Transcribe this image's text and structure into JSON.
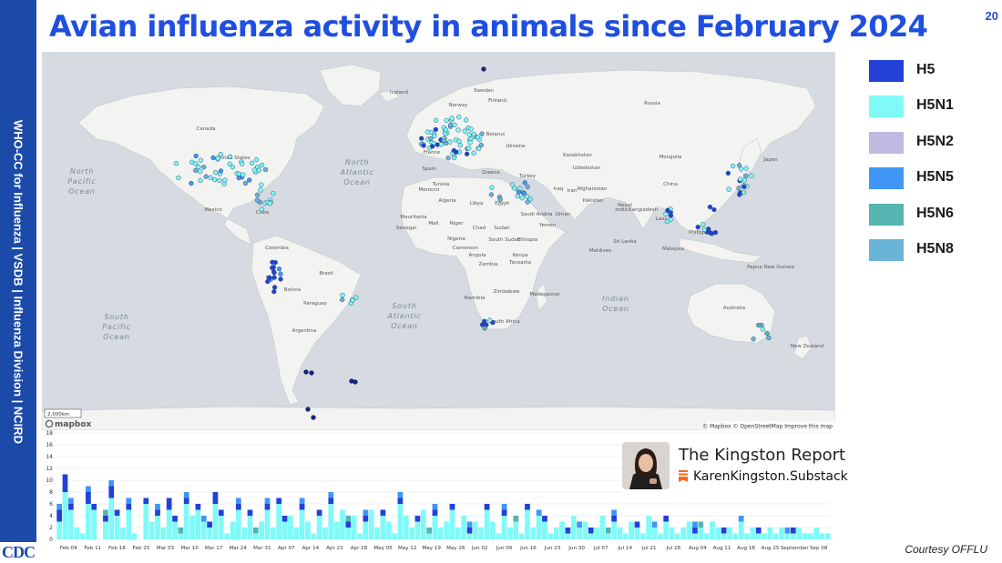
{
  "slide": {
    "title": "Avian influenza activity in animals since February 2024",
    "page_number": "20",
    "sidebar_text": "WHO-CC for Influenza  |  VSDB | Influenza Division  |  NCIRD",
    "logo_text": "CDC",
    "courtesy": "Courtesy OFFLU"
  },
  "legend": [
    {
      "label": "H5",
      "color": "#2340d8"
    },
    {
      "label": "H5N1",
      "color": "#7ffaf8"
    },
    {
      "label": "H5N2",
      "color": "#c0b8e0"
    },
    {
      "label": "H5N5",
      "color": "#3f96f5"
    },
    {
      "label": "H5N6",
      "color": "#55b5b0"
    },
    {
      "label": "H5N8",
      "color": "#6ab4d8"
    }
  ],
  "map": {
    "ocean_labels": [
      {
        "lines": [
          "North",
          "Pacific",
          "Ocean"
        ]
      },
      {
        "lines": [
          "North",
          "Atlantic",
          "Ocean"
        ]
      },
      {
        "lines": [
          "South",
          "Pacific",
          "Ocean"
        ]
      },
      {
        "lines": [
          "South",
          "Atlantic",
          "Ocean"
        ]
      },
      {
        "lines": [
          "Indian",
          "Ocean"
        ]
      }
    ],
    "country_labels": [
      "Iceland",
      "Sweden",
      "Finland",
      "Norway",
      "Russia",
      "Canada",
      "United States",
      "Mexico",
      "Cuba",
      "Colombia",
      "Brazil",
      "Peru",
      "Bolivia",
      "Paraguay",
      "Argentina",
      "Kazakhstan",
      "Mongolia",
      "China",
      "India",
      "Turkey",
      "Iran",
      "Afghanistan",
      "Pakistan",
      "Uzbekistan",
      "Spain",
      "France",
      "Belarus",
      "Ukraine",
      "Greece",
      "Morocco",
      "Tunisia",
      "Algeria",
      "Libya",
      "Egypt",
      "Mauritania",
      "Mali",
      "Niger",
      "Chad",
      "Sudan",
      "Senegal",
      "Nigeria",
      "Cameroon",
      "South Sudan",
      "Ethiopia",
      "Kenya",
      "Tanzania",
      "Angola",
      "Zambia",
      "Zimbabwe",
      "Namibia",
      "Madagascar",
      "South Africa",
      "Saudi Arabia",
      "Iraq",
      "Oman",
      "Yemen",
      "Nepal",
      "Bangladesh",
      "Laos",
      "Philippines",
      "Malaysia",
      "Sri Lanka",
      "Maldives",
      "Papua New Guinea",
      "Australia",
      "New Zealand",
      "Japan"
    ],
    "scale_label": "2,000km",
    "mapbox_logo": "mapbox",
    "attribution": "© Mapbox © OpenStreetMap Improve this map"
  },
  "chart_data": {
    "type": "bar",
    "ylim": [
      0,
      18
    ],
    "y_ticks": [
      0,
      2,
      4,
      6,
      8,
      10,
      12,
      14,
      16,
      18
    ],
    "x_tick_labels": [
      "Feb 04",
      "Feb 11",
      "Feb 18",
      "Feb 25",
      "Mar 03",
      "Mar 10",
      "Mar 17",
      "Mar 24",
      "Mar 31",
      "Apr 07",
      "Apr 14",
      "Apr 21",
      "Apr 28",
      "May 05",
      "May 12",
      "May 19",
      "May 26",
      "Jun 02",
      "Jun 09",
      "Jun 16",
      "Jun 23",
      "Jun 30",
      "Jul 07",
      "Jul 14",
      "Jul 21",
      "Jul 28",
      "Aug 04",
      "Aug 11",
      "Aug 18",
      "Aug 25",
      "September",
      "Sep 08"
    ],
    "series": [
      {
        "name": "H5N1",
        "color": "#7ffaf8",
        "values": [
          3,
          8,
          5,
          2,
          1,
          6,
          5,
          0,
          3,
          7,
          4,
          2,
          5,
          1,
          0,
          6,
          3,
          4,
          2,
          5,
          3,
          1,
          6,
          4,
          5,
          3,
          2,
          6,
          4,
          1,
          3,
          5,
          2,
          4,
          1,
          3,
          5,
          2,
          6,
          3,
          4,
          2,
          5,
          3,
          1,
          4,
          2,
          6,
          3,
          5,
          2,
          4,
          1,
          3,
          5,
          2,
          4,
          3,
          1,
          6,
          4,
          2,
          3,
          5,
          1,
          4,
          2,
          3,
          5,
          2,
          4,
          1,
          3,
          2,
          5,
          3,
          1,
          4,
          2,
          3,
          1,
          5,
          2,
          4,
          3,
          1,
          2,
          3,
          1,
          4,
          2,
          3,
          1,
          2,
          4,
          1,
          3,
          2,
          1,
          3,
          2,
          1,
          4,
          2,
          1,
          3,
          2,
          1,
          2,
          3,
          1,
          2,
          1,
          3,
          2,
          1,
          2,
          1,
          3,
          1,
          2,
          1,
          1,
          2,
          1,
          2,
          1,
          1,
          2,
          1,
          1,
          2,
          1,
          1
        ]
      },
      {
        "name": "H5",
        "color": "#2340d8",
        "values": [
          2,
          3,
          1,
          0,
          0,
          2,
          1,
          0,
          1,
          2,
          1,
          0,
          1,
          0,
          0,
          1,
          0,
          1,
          0,
          2,
          1,
          0,
          1,
          0,
          1,
          0,
          1,
          2,
          1,
          0,
          0,
          1,
          0,
          1,
          0,
          0,
          1,
          0,
          1,
          1,
          0,
          0,
          1,
          0,
          0,
          1,
          0,
          1,
          0,
          0,
          1,
          0,
          0,
          1,
          0,
          0,
          1,
          0,
          0,
          1,
          0,
          0,
          1,
          0,
          0,
          1,
          0,
          0,
          1,
          0,
          0,
          1,
          0,
          0,
          1,
          0,
          0,
          1,
          0,
          0,
          0,
          1,
          0,
          0,
          1,
          0,
          0,
          0,
          1,
          0,
          0,
          0,
          1,
          0,
          0,
          0,
          1,
          0,
          0,
          0,
          1,
          0,
          0,
          0,
          0,
          1,
          0,
          0,
          0,
          0,
          1,
          0,
          0,
          0,
          0,
          1,
          0,
          0,
          0,
          0,
          0,
          1,
          0,
          0,
          0,
          0,
          0,
          1,
          0,
          0,
          0,
          0,
          0,
          0
        ]
      },
      {
        "name": "H5N5",
        "color": "#3f96f5",
        "values": [
          1,
          0,
          1,
          0,
          0,
          1,
          0,
          0,
          0,
          1,
          0,
          0,
          1,
          0,
          0,
          0,
          0,
          1,
          0,
          0,
          0,
          0,
          1,
          0,
          0,
          1,
          0,
          0,
          0,
          0,
          0,
          1,
          0,
          0,
          0,
          0,
          1,
          0,
          0,
          0,
          0,
          0,
          1,
          0,
          0,
          0,
          0,
          1,
          0,
          0,
          0,
          0,
          0,
          1,
          0,
          0,
          0,
          0,
          0,
          1,
          0,
          0,
          0,
          0,
          0,
          1,
          0,
          0,
          0,
          0,
          0,
          1,
          0,
          0,
          0,
          0,
          0,
          1,
          0,
          0,
          0,
          0,
          0,
          1,
          0,
          0,
          0,
          0,
          0,
          0,
          1,
          0,
          0,
          0,
          0,
          0,
          1,
          0,
          0,
          0,
          0,
          0,
          0,
          1,
          0,
          0,
          0,
          0,
          0,
          0,
          1,
          0,
          0,
          0,
          0,
          0,
          0,
          0,
          1,
          0,
          0,
          0,
          0,
          0,
          0,
          0,
          1,
          0,
          0,
          0,
          0,
          0,
          0,
          0
        ]
      },
      {
        "name": "H5N6",
        "color": "#55b5b0",
        "values": [
          0,
          0,
          0,
          0,
          0,
          0,
          0,
          0,
          1,
          0,
          0,
          0,
          0,
          0,
          0,
          0,
          0,
          0,
          0,
          0,
          0,
          1,
          0,
          0,
          0,
          0,
          0,
          0,
          0,
          0,
          0,
          0,
          0,
          0,
          1,
          0,
          0,
          0,
          0,
          0,
          0,
          0,
          0,
          0,
          0,
          0,
          0,
          0,
          0,
          0,
          1,
          0,
          0,
          0,
          0,
          0,
          0,
          0,
          0,
          0,
          0,
          0,
          0,
          0,
          1,
          0,
          0,
          0,
          0,
          0,
          0,
          0,
          0,
          0,
          0,
          0,
          0,
          0,
          0,
          1,
          0,
          0,
          0,
          0,
          0,
          0,
          0,
          0,
          0,
          0,
          0,
          0,
          0,
          0,
          0,
          1,
          0,
          0,
          0,
          0,
          0,
          0,
          0,
          0,
          0,
          0,
          0,
          0,
          0,
          0,
          0,
          1,
          0,
          0,
          0,
          0,
          0,
          0,
          0,
          0,
          0,
          0,
          0,
          0,
          0,
          0,
          0,
          0,
          0,
          0,
          0,
          0,
          0,
          0
        ]
      }
    ]
  },
  "kingston_report": {
    "title": "The Kingston Report",
    "subtitle": "KarenKingston.Substack"
  }
}
